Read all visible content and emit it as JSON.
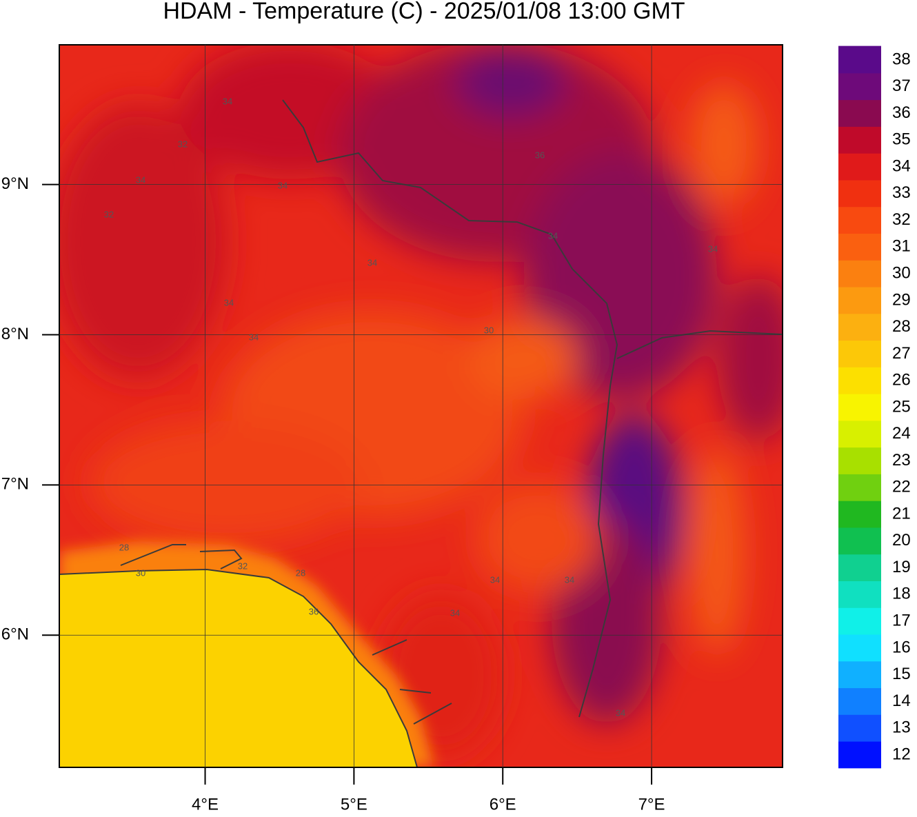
{
  "header": {
    "title": "HDAM - Temperature (C)  -  2025/01/08  13:00 GMT"
  },
  "map": {
    "xlim": [
      3.02,
      7.88
    ],
    "ylim": [
      5.12,
      9.93
    ],
    "xticks": [
      {
        "value": 4,
        "label": "4°E"
      },
      {
        "value": 5,
        "label": "5°E"
      },
      {
        "value": 6,
        "label": "6°E"
      },
      {
        "value": 7,
        "label": "7°E"
      }
    ],
    "yticks": [
      {
        "value": 6,
        "label": "6°N"
      },
      {
        "value": 7,
        "label": "7°N"
      },
      {
        "value": 8,
        "label": "8°N"
      },
      {
        "value": 9,
        "label": "9°N"
      }
    ],
    "grid": true,
    "contour_labels": [
      "34",
      "32",
      "34",
      "34",
      "32",
      "34",
      "34",
      "34",
      "30",
      "28",
      "30",
      "32",
      "28",
      "36",
      "36",
      "34",
      "34",
      "34",
      "34",
      "34",
      "34"
    ]
  },
  "colorbar": {
    "ticks": [
      12,
      13,
      14,
      15,
      16,
      17,
      18,
      19,
      20,
      21,
      22,
      23,
      24,
      25,
      26,
      27,
      28,
      29,
      30,
      31,
      32,
      33,
      34,
      35,
      36,
      37,
      38
    ],
    "colors": [
      "#0010ff",
      "#1050ff",
      "#1080ff",
      "#10b0ff",
      "#10e0ff",
      "#10f0e8",
      "#10e0c0",
      "#10d090",
      "#10c050",
      "#20b820",
      "#70d010",
      "#a8e000",
      "#d8f000",
      "#f8f400",
      "#fce000",
      "#fcc808",
      "#fcb010",
      "#fc9a10",
      "#fb8010",
      "#fa6010",
      "#f84a10",
      "#f03010",
      "#e01a1a",
      "#c00a2a",
      "#8a0a50",
      "#6e0a7a",
      "#5a0a8a"
    ]
  }
}
